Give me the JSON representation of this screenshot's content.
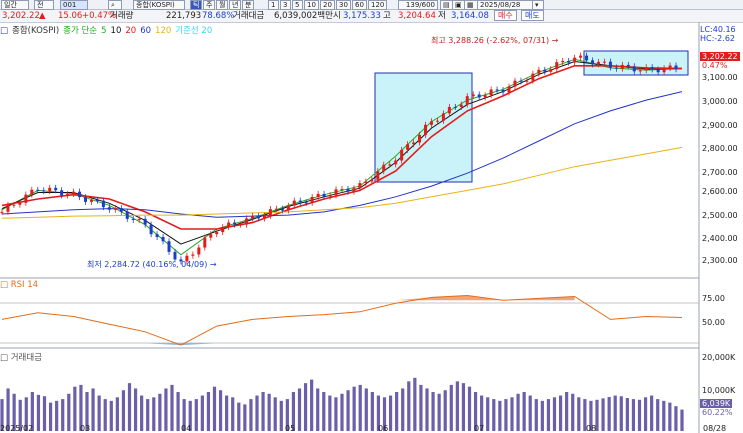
{
  "toolbar": {
    "period_label": "일간",
    "scope_label": "전",
    "code_value": "001",
    "index_name": "종합(KOSPI)",
    "mode_buttons": [
      "틱",
      "주",
      "월",
      "년",
      "분"
    ],
    "interval_buttons": [
      "1",
      "3",
      "5",
      "10",
      "20",
      "30",
      "60",
      "120"
    ],
    "count_value": "139/600",
    "date_value": "2025/08/28"
  },
  "quote": {
    "price": "3,202.22",
    "arrow": "▲",
    "change": "15.06",
    "change_pct": "+0.47%",
    "volume_label": "거래량",
    "volume": "221,793",
    "volume_pct": "78.68%",
    "amount_label": "거래대금",
    "amount": "6,039,002백만",
    "open_label": "시",
    "open": "3,175.33",
    "high_label": "고",
    "high": "3,204.64",
    "low_label": "저",
    "low": "3,164.08",
    "buy_label": "매수",
    "sell_label": "매도"
  },
  "legend": {
    "index_label": "종합(KOSPI)",
    "ma_prefix": "종가 단순",
    "ma_items": [
      {
        "label": "5",
        "color": "#22aa22"
      },
      {
        "label": "10",
        "color": "#111111"
      },
      {
        "label": "20",
        "color": "#e41b1b"
      },
      {
        "label": "60",
        "color": "#2233cc"
      },
      {
        "label": "120",
        "color": "#e8b317"
      }
    ],
    "base_line_label": "기준선 20"
  },
  "colors": {
    "up": "#e41b1b",
    "down": "#1a3ec8",
    "rsi": "#e46c1a",
    "volume": "#6a5fa8",
    "highlight": "#c9f3f8",
    "accent": "#1f2fb0"
  },
  "annotations": {
    "high_text": "최고 3,288.26 (-2.62%, 07/31) →",
    "low_text": "최저 2,284.72 (40.16%, 04/09) →"
  },
  "price_axis": {
    "ticks": [
      "3,100.00",
      "3,000.00",
      "2,900.00",
      "2,800.00",
      "2,700.00",
      "2,600.00",
      "2,500.00",
      "2,400.00",
      "2,300.00"
    ],
    "lc_label": "LC:40.16",
    "hc_label": "HC:-2.62",
    "current_badge": "3,202.22",
    "current_pct": "0.47%"
  },
  "rsi_panel": {
    "title": "RSI 14",
    "ticks": [
      "75.00",
      "50.00"
    ]
  },
  "volume_panel": {
    "title": "거래대금",
    "ticks": [
      "20,000K",
      "10,000K"
    ],
    "badge": "6,039K",
    "badge_pct": "60.22%"
  },
  "x_axis": {
    "labels": [
      "2025/02",
      "03",
      "04",
      "05",
      "06",
      "07",
      "08",
      "08/28"
    ]
  },
  "chart_data": [
    {
      "type": "candlestick",
      "title": "종합(KOSPI)",
      "ylim": [
        2250,
        3330
      ],
      "x": [
        "02-end",
        "03-early",
        "03-mid",
        "03-late",
        "04-early",
        "04-09",
        "04-mid",
        "04-late",
        "05-early",
        "05-mid",
        "05-late",
        "06-early",
        "06-mid",
        "06-late",
        "07-early",
        "07-mid",
        "07-31",
        "08-early",
        "08-mid",
        "08-28"
      ],
      "close": [
        2530,
        2640,
        2610,
        2550,
        2470,
        2290,
        2450,
        2500,
        2560,
        2610,
        2650,
        2780,
        2950,
        3060,
        3100,
        3180,
        3250,
        3210,
        3190,
        3202
      ],
      "high_marker": {
        "value": 3288.26,
        "pct": "-2.62%",
        "date": "07/31"
      },
      "low_marker": {
        "value": 2284.72,
        "pct": "40.16%",
        "date": "04/09"
      },
      "series": [
        {
          "name": "5",
          "values": [
            2540,
            2630,
            2615,
            2560,
            2470,
            2330,
            2450,
            2500,
            2560,
            2610,
            2650,
            2790,
            2950,
            3050,
            3100,
            3180,
            3240,
            3200,
            3190,
            3198
          ]
        },
        {
          "name": "10",
          "values": [
            2545,
            2620,
            2620,
            2570,
            2490,
            2380,
            2440,
            2495,
            2555,
            2600,
            2640,
            2760,
            2920,
            3030,
            3090,
            3170,
            3230,
            3210,
            3195,
            3196
          ]
        },
        {
          "name": "20",
          "values": [
            2560,
            2590,
            2610,
            2590,
            2530,
            2450,
            2450,
            2480,
            2540,
            2590,
            2630,
            2720,
            2880,
            3000,
            3070,
            3150,
            3210,
            3210,
            3200,
            3198
          ]
        },
        {
          "name": "60",
          "values": [
            2520,
            2530,
            2540,
            2545,
            2540,
            2520,
            2505,
            2510,
            2515,
            2530,
            2560,
            2600,
            2650,
            2710,
            2780,
            2860,
            2940,
            3000,
            3050,
            3090
          ]
        },
        {
          "name": "120",
          "values": [
            2500,
            2505,
            2510,
            2512,
            2515,
            2515,
            2520,
            2525,
            2530,
            2540,
            2550,
            2570,
            2600,
            2630,
            2660,
            2700,
            2740,
            2770,
            2800,
            2830
          ]
        }
      ]
    },
    {
      "type": "line",
      "title": "RSI 14",
      "ylim": [
        25,
        90
      ],
      "values": [
        55,
        62,
        58,
        50,
        42,
        28,
        48,
        55,
        58,
        60,
        63,
        72,
        78,
        80,
        75,
        77,
        79,
        55,
        58,
        57
      ]
    },
    {
      "type": "bar",
      "title": "거래대금",
      "ylim": [
        0,
        22000
      ],
      "values": [
        9000,
        12000,
        10500,
        8800,
        9500,
        11000,
        10200,
        9800,
        8000,
        8500,
        9000,
        10500,
        12500,
        13000,
        11000,
        12000,
        10000,
        9000,
        8500,
        9500,
        11500,
        13500,
        12000,
        10000,
        9000,
        9500,
        10500,
        12000,
        13000,
        11000,
        9000,
        8500,
        9000,
        10000,
        11000,
        12500,
        11500,
        10000,
        9500,
        8000,
        7500,
        9000,
        10000,
        11000,
        10500,
        9500,
        8500,
        9000,
        11000,
        12000,
        13500,
        14500,
        12000,
        11000,
        10000,
        9500,
        10500,
        11500,
        12500,
        13000,
        12000,
        11000,
        10000,
        9500,
        10000,
        11000,
        12000,
        14000,
        15000,
        13000,
        12000,
        11000,
        10500,
        11500,
        13000,
        14000,
        13500,
        12500,
        11000,
        10000,
        9500,
        9000,
        8500,
        9000,
        9500,
        10500,
        11000,
        10000,
        9000,
        8500,
        9000,
        9500,
        10000,
        11000,
        10500,
        9500,
        9000,
        8500,
        8800,
        9200,
        9600,
        10000,
        9800,
        9300,
        9000,
        8800,
        9500,
        10000,
        9000,
        8500,
        8000,
        7000,
        6039
      ]
    }
  ]
}
